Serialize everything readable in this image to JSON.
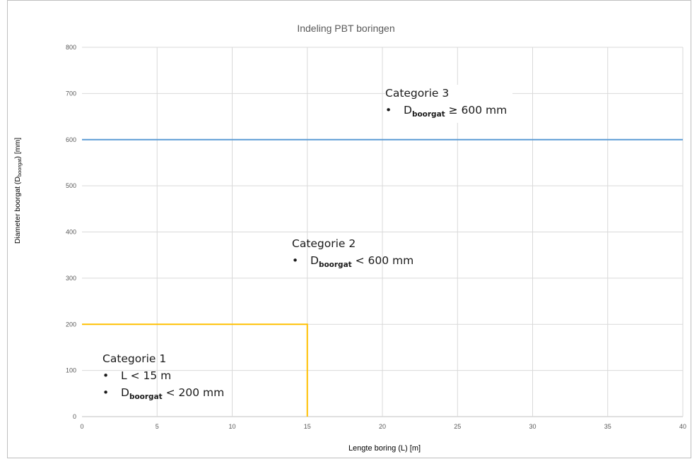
{
  "chart_data": {
    "type": "line",
    "title": "Indeling PBT boringen",
    "xlabel": "Lengte boring (L) [m]",
    "ylabel": {
      "main": "Diameter boorgat (D",
      "sub": "boorgat",
      "end": ") [mm]"
    },
    "xlim": [
      0,
      40
    ],
    "ylim": [
      0,
      800
    ],
    "x_ticks": [
      0,
      5,
      10,
      15,
      20,
      25,
      30,
      35,
      40
    ],
    "y_ticks": [
      0,
      100,
      200,
      300,
      400,
      500,
      600,
      700,
      800
    ],
    "grid": true,
    "series": [
      {
        "color": "#5b9bd5",
        "x": [
          0,
          40
        ],
        "y": [
          600,
          600
        ]
      },
      {
        "color": "#ffc000",
        "x": [
          0,
          15,
          15
        ],
        "y": [
          200,
          200,
          0
        ]
      }
    ],
    "annotations": [
      {
        "title": "Categorie 1",
        "bullets": [
          {
            "text": "L < 15 m"
          },
          {
            "pre": "D",
            "sub": "boorgat",
            "post": " < 200 mm"
          }
        ]
      },
      {
        "title": "Categorie 2",
        "bullets": [
          {
            "pre": "D",
            "sub": "boorgat",
            "post": " < 600 mm"
          }
        ]
      },
      {
        "title": "Categorie 3",
        "bullets": [
          {
            "pre": "D",
            "sub": "boorgat",
            "post": " ≥ 600 mm"
          }
        ]
      }
    ]
  },
  "bullet_symbol": "•"
}
